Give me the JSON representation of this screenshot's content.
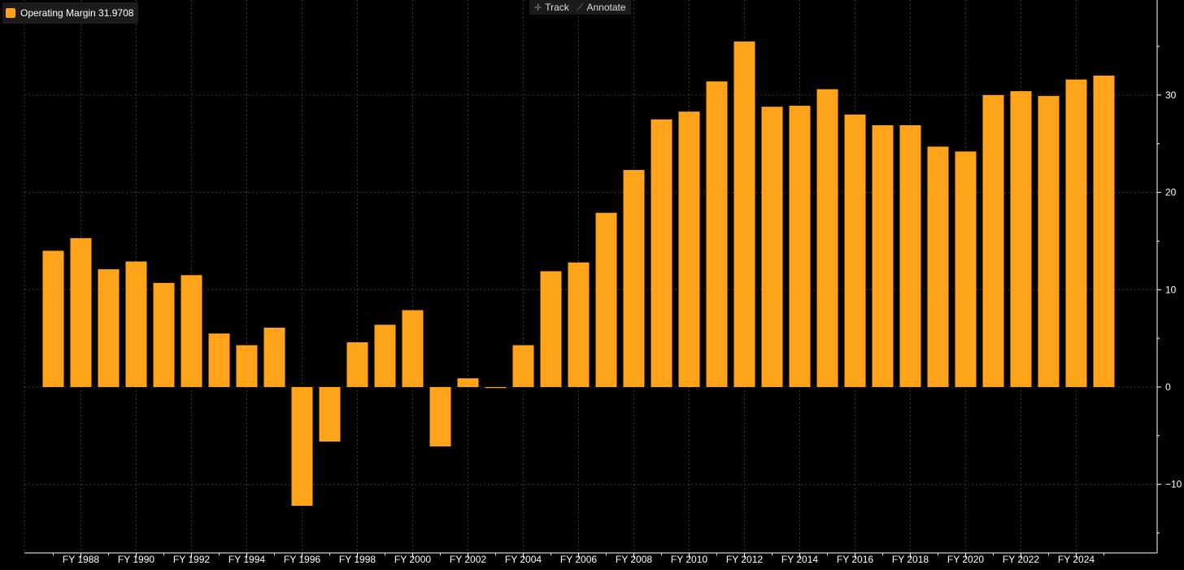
{
  "legend": {
    "label": "Operating Margin 31.9708",
    "color": "#ffa31a"
  },
  "toolbar": {
    "track_label": "Track",
    "annotate_label": "Annotate",
    "track_icon": "crosshair-icon",
    "annotate_icon": "pencil-icon"
  },
  "colors": {
    "background": "#000000",
    "bar": "#ffa31a",
    "grid": "#3a3a3a",
    "axis": "#ffffff"
  },
  "chart_data": {
    "type": "bar",
    "title": "",
    "xlabel": "",
    "ylabel": "",
    "ylim": [
      -16,
      38
    ],
    "y_ticks": [
      -10,
      0,
      10,
      20,
      30
    ],
    "x_tick_labels": [
      "FY 1988",
      "FY 1990",
      "FY 1992",
      "FY 1994",
      "FY 1996",
      "FY 1998",
      "FY 2000",
      "FY 2002",
      "FY 2004",
      "FY 2006",
      "FY 2008",
      "FY 2010",
      "FY 2012",
      "FY 2014",
      "FY 2016",
      "FY 2018",
      "FY 2020",
      "FY 2022",
      "FY 2024"
    ],
    "grid": true,
    "y_axis_position": "right",
    "categories": [
      "FY 1987",
      "FY 1988",
      "FY 1989",
      "FY 1990",
      "FY 1991",
      "FY 1992",
      "FY 1993",
      "FY 1994",
      "FY 1995",
      "FY 1996",
      "FY 1997",
      "FY 1998",
      "FY 1999",
      "FY 2000",
      "FY 2001",
      "FY 2002",
      "FY 2003",
      "FY 2004",
      "FY 2005",
      "FY 2006",
      "FY 2007",
      "FY 2008",
      "FY 2009",
      "FY 2010",
      "FY 2011",
      "FY 2012",
      "FY 2013",
      "FY 2014",
      "FY 2015",
      "FY 2016",
      "FY 2017",
      "FY 2018",
      "FY 2019",
      "FY 2020",
      "FY 2021",
      "FY 2022",
      "FY 2023",
      "FY 2024",
      "FY 2025"
    ],
    "series": [
      {
        "name": "Operating Margin",
        "values": [
          14.0,
          15.3,
          12.1,
          12.9,
          10.7,
          11.5,
          5.5,
          4.3,
          6.1,
          -12.2,
          -5.6,
          4.6,
          6.4,
          7.9,
          -6.1,
          0.9,
          -0.1,
          4.3,
          11.9,
          12.8,
          17.9,
          22.3,
          27.5,
          28.3,
          31.4,
          35.5,
          28.8,
          28.9,
          30.6,
          28.0,
          26.9,
          26.9,
          24.7,
          24.2,
          30.0,
          30.4,
          29.9,
          31.6,
          32.0
        ]
      }
    ]
  }
}
